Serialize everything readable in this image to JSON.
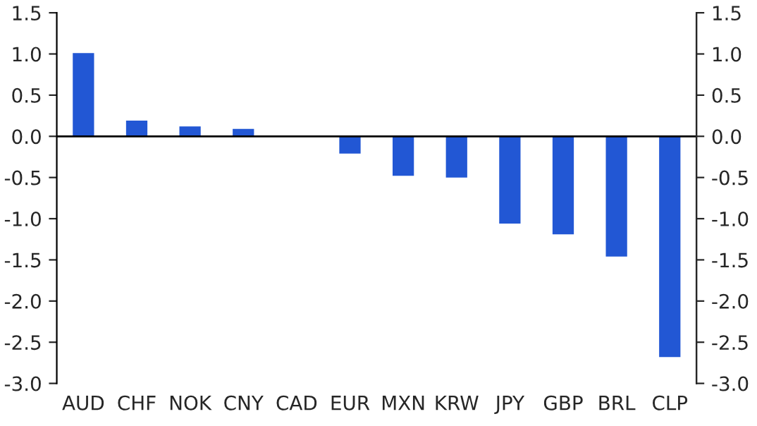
{
  "chart_data": {
    "type": "bar",
    "categories": [
      "AUD",
      "CHF",
      "NOK",
      "CNY",
      "CAD",
      "EUR",
      "MXN",
      "KRW",
      "JPY",
      "GBP",
      "BRL",
      "CLP"
    ],
    "values": [
      1.01,
      0.19,
      0.12,
      0.09,
      0.0,
      -0.21,
      -0.48,
      -0.5,
      -1.06,
      -1.19,
      -1.46,
      -2.68
    ],
    "color": "#2257d4",
    "ylim": [
      -3.0,
      1.5
    ],
    "yticks": [
      {
        "value": 1.5,
        "label": "1.5"
      },
      {
        "value": 1.0,
        "label": "1.0"
      },
      {
        "value": 0.5,
        "label": "0.5"
      },
      {
        "value": 0.0,
        "label": "0.0"
      },
      {
        "value": -0.5,
        "label": "-0.5"
      },
      {
        "value": -1.0,
        "label": "-1.0"
      },
      {
        "value": -1.5,
        "label": "-1.5"
      },
      {
        "value": -2.0,
        "label": "-2.0"
      },
      {
        "value": -2.5,
        "label": "-2.5"
      },
      {
        "value": -3.0,
        "label": "-3.0"
      }
    ],
    "y2lim": [
      -3.0,
      1.5
    ],
    "y2ticks": [
      {
        "value": 1.5,
        "label": "1.5"
      },
      {
        "value": 1.0,
        "label": "1.0"
      },
      {
        "value": 0.5,
        "label": "0.5"
      },
      {
        "value": 0.0,
        "label": "0.0"
      },
      {
        "value": -0.5,
        "label": "-0.5"
      },
      {
        "value": -1.0,
        "label": "-1.0"
      },
      {
        "value": -1.5,
        "label": "-1.5"
      },
      {
        "value": -2.0,
        "label": "-2.0"
      },
      {
        "value": -2.5,
        "label": "-2.5"
      },
      {
        "value": -3.0,
        "label": "-3.0"
      }
    ],
    "ref_lines": [
      {
        "axis": "y",
        "value": 0.0,
        "color": "#000000"
      }
    ]
  }
}
